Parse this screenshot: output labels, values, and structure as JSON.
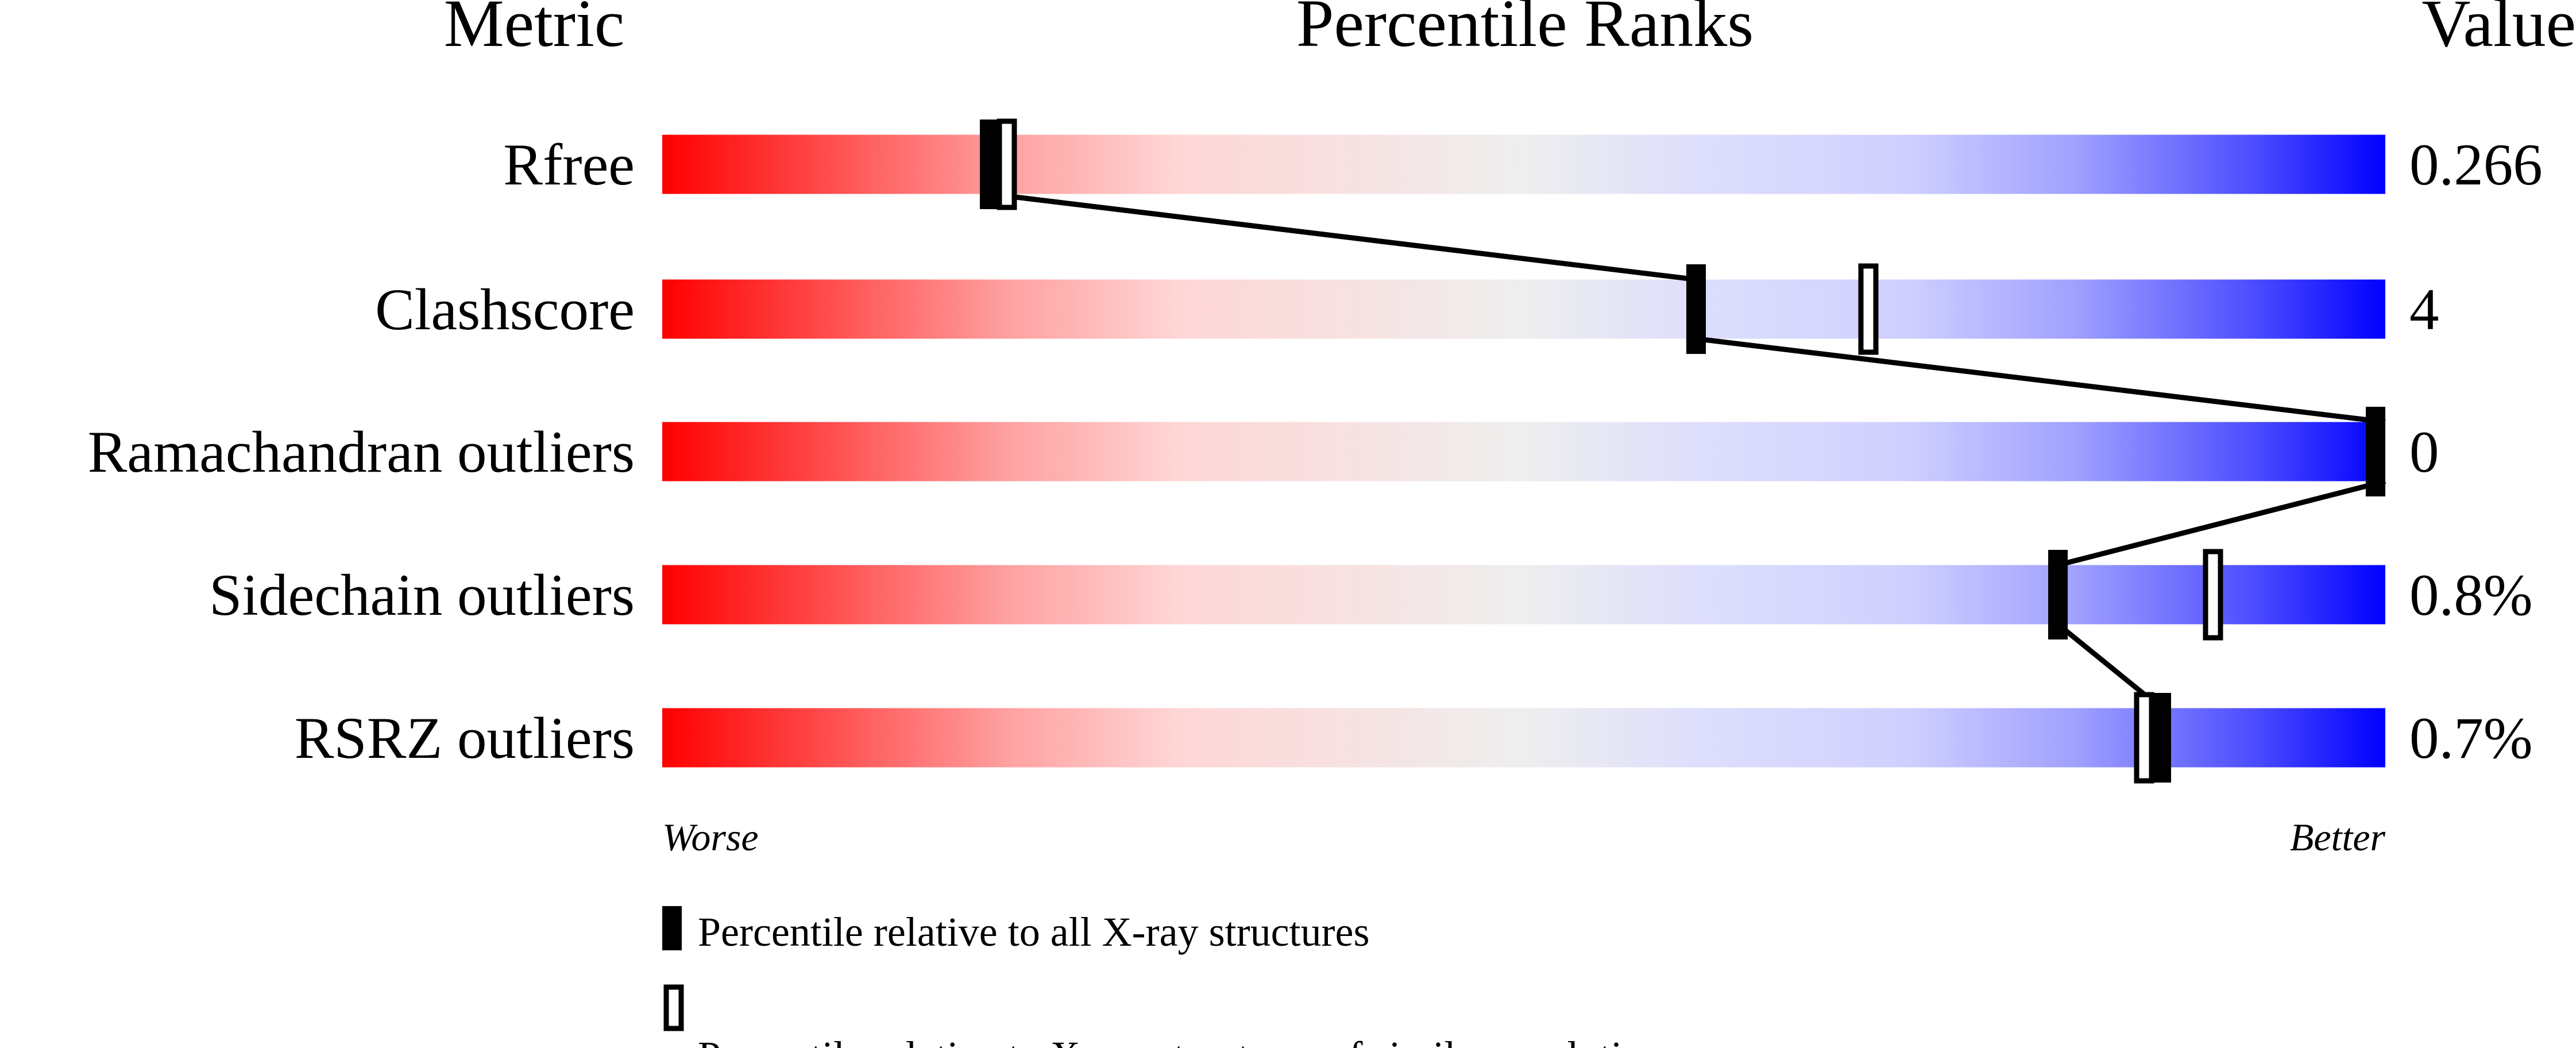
{
  "chart_data": {
    "type": "bar",
    "headers": {
      "metric": "Metric",
      "ranks": "Percentile Ranks",
      "value": "Value"
    },
    "xlim": [
      0,
      100
    ],
    "metrics": [
      {
        "label": "Rfree",
        "value": "0.266",
        "percentile_all": 19,
        "percentile_similar": 20
      },
      {
        "label": "Clashscore",
        "value": "4",
        "percentile_all": 60,
        "percentile_similar": 70
      },
      {
        "label": "Ramachandran outliers",
        "value": "0",
        "percentile_all": 100,
        "percentile_similar": null
      },
      {
        "label": "Sidechain outliers",
        "value": "0.8%",
        "percentile_all": 81,
        "percentile_similar": 90
      },
      {
        "label": "RSRZ outliers",
        "value": "0.7%",
        "percentile_all": 87,
        "percentile_similar": 86
      }
    ],
    "axis_left_label": "Worse",
    "axis_right_label": "Better",
    "legend": [
      {
        "marker": "filled",
        "label": "Percentile relative to all X-ray structures"
      },
      {
        "marker": "hollow",
        "label": "Percentile relative to X-ray structures of similar resolution"
      }
    ],
    "colors": {
      "worse": "#ff0000",
      "middle": "#eeeeee",
      "better": "#0000ff",
      "marker": "#000000"
    }
  }
}
